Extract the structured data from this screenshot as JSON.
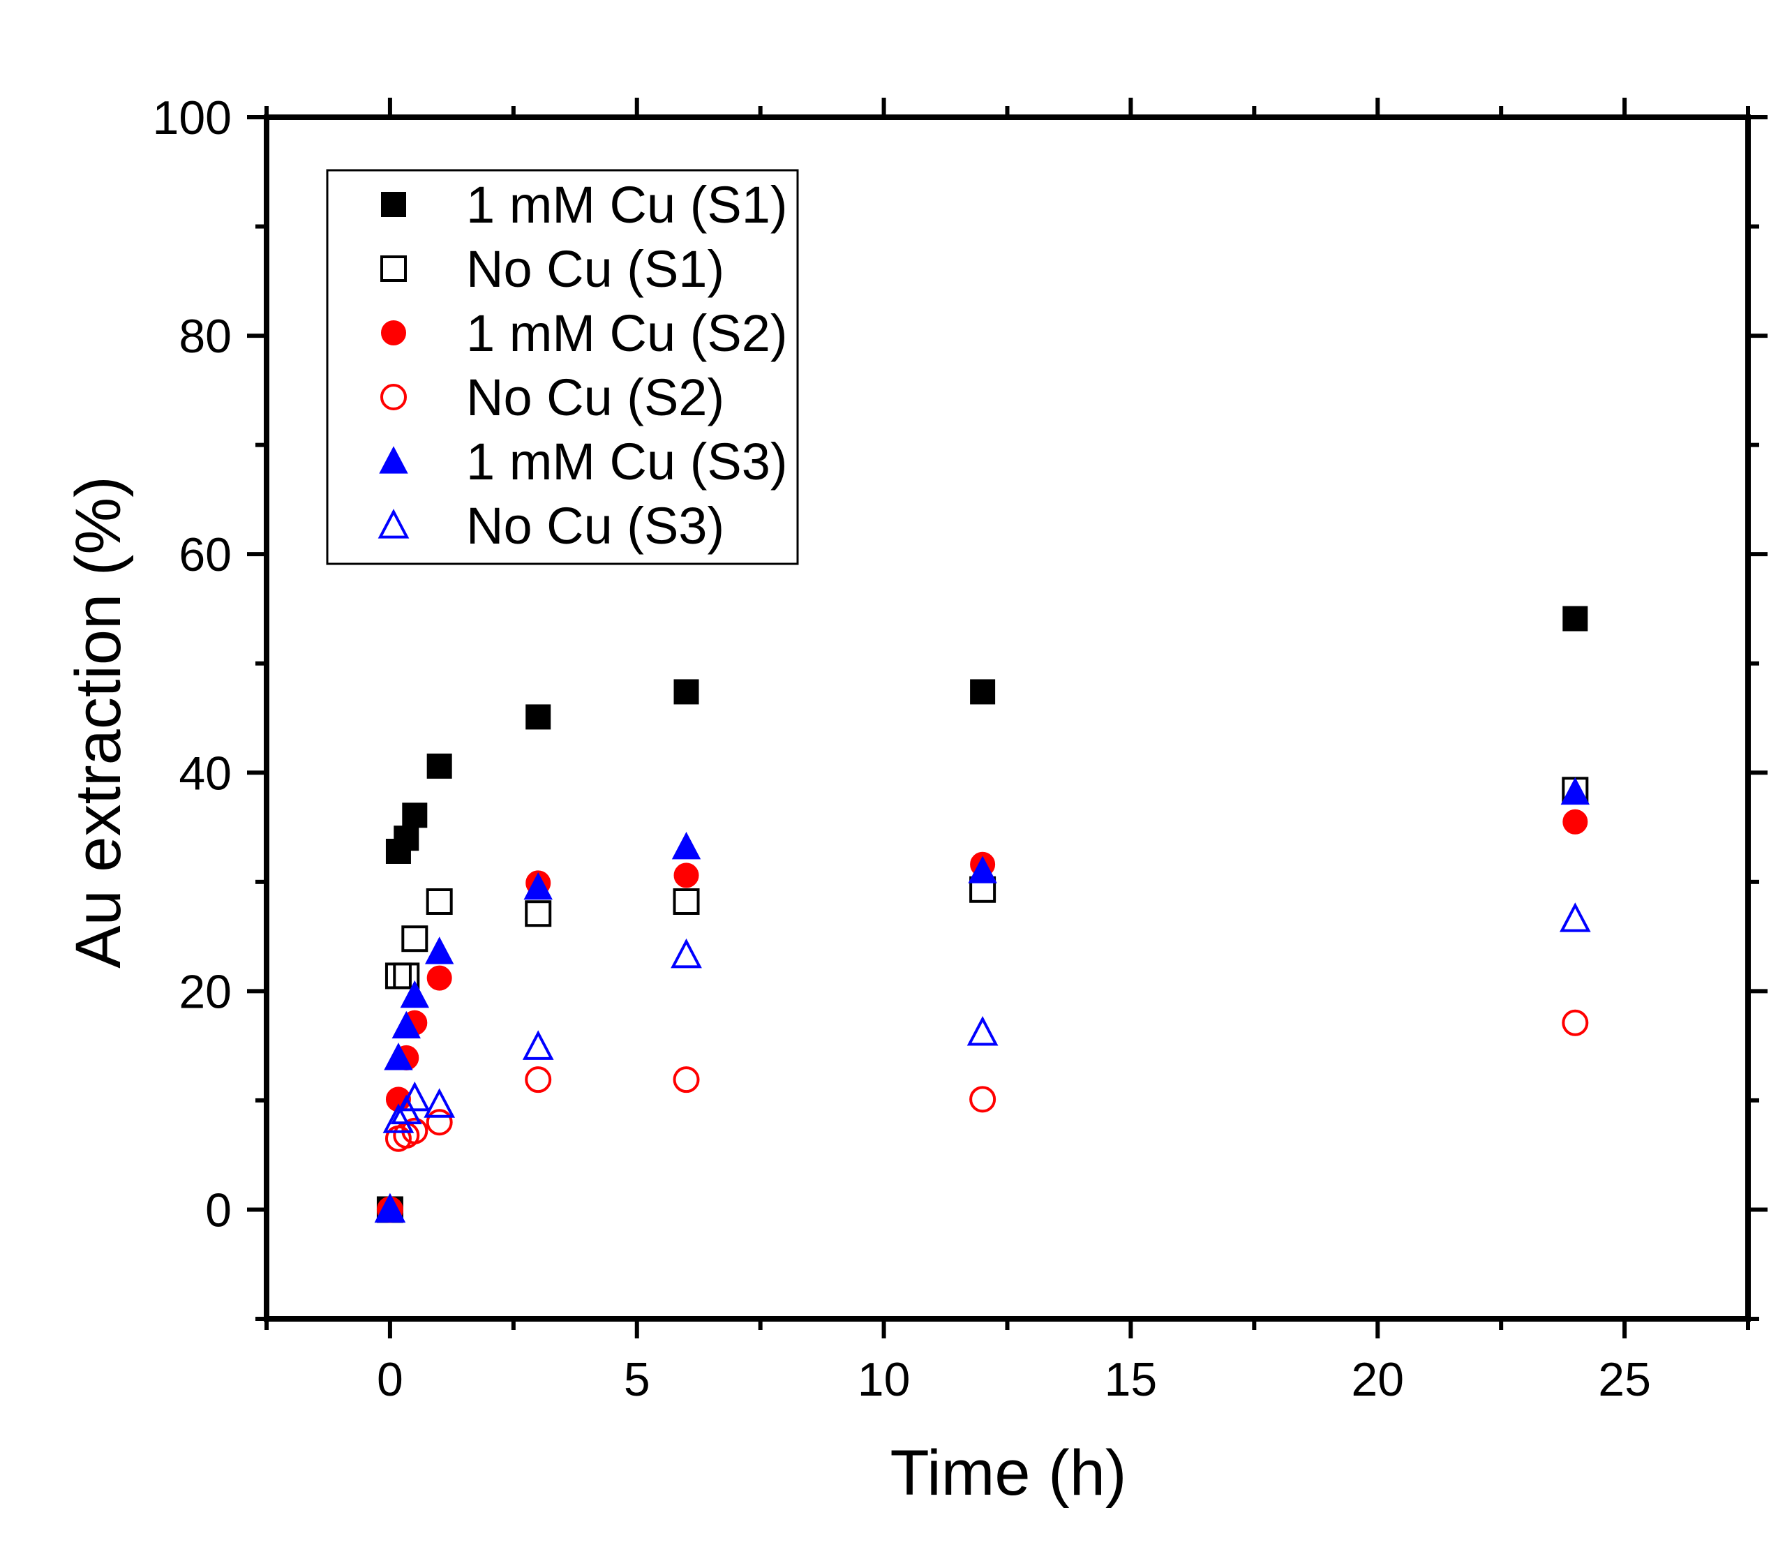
{
  "chart_data": {
    "type": "scatter",
    "title": "",
    "xlabel": "Time (h)",
    "ylabel": "Au extraction (%)",
    "xlim": [
      -2.5,
      27.5
    ],
    "ylim": [
      -10,
      100
    ],
    "xticks": [
      0,
      5,
      10,
      15,
      20,
      25
    ],
    "yticks": [
      0,
      20,
      40,
      60,
      80,
      100
    ],
    "xtick_labels": [
      "0",
      "5",
      "10",
      "15",
      "20",
      "25"
    ],
    "ytick_labels": [
      "0",
      "20",
      "40",
      "60",
      "80",
      "100"
    ],
    "legend_position": "top-left",
    "series": [
      {
        "name": "1 mM Cu (S1)",
        "marker": "square",
        "filled": true,
        "color": "#000000",
        "x": [
          0,
          0.17,
          0.33,
          0.5,
          1,
          3,
          6,
          12,
          24
        ],
        "y": [
          0,
          32.8,
          34.0,
          36.1,
          40.6,
          45.1,
          47.4,
          47.4,
          54.1
        ]
      },
      {
        "name": "No Cu (S1)",
        "marker": "square",
        "filled": false,
        "color": "#000000",
        "x": [
          0,
          0.17,
          0.33,
          0.5,
          1,
          3,
          6,
          12,
          24
        ],
        "y": [
          0,
          21.4,
          21.4,
          24.8,
          28.2,
          27.1,
          28.2,
          29.3,
          38.4
        ]
      },
      {
        "name": "1 mM Cu (S2)",
        "marker": "circle",
        "filled": true,
        "color": "#ff0000",
        "x": [
          0,
          0.17,
          0.33,
          0.5,
          1,
          3,
          6,
          12,
          24
        ],
        "y": [
          0,
          10.1,
          13.9,
          17.1,
          21.2,
          29.9,
          30.6,
          31.6,
          35.5
        ]
      },
      {
        "name": "No Cu (S2)",
        "marker": "circle",
        "filled": false,
        "color": "#ff0000",
        "x": [
          0,
          0.17,
          0.33,
          0.5,
          1,
          3,
          6,
          12,
          24
        ],
        "y": [
          0,
          6.5,
          6.8,
          7.2,
          8.0,
          11.9,
          11.9,
          10.1,
          17.1
        ]
      },
      {
        "name": "1 mM Cu (S3)",
        "marker": "triangle",
        "filled": true,
        "color": "#0000ff",
        "x": [
          0,
          0.17,
          0.33,
          0.5,
          1,
          3,
          6,
          12,
          24
        ],
        "y": [
          0,
          13.9,
          16.8,
          19.6,
          23.6,
          29.5,
          33.2,
          31.0,
          38.2
        ]
      },
      {
        "name": "No Cu (S3)",
        "marker": "triangle",
        "filled": false,
        "color": "#0000ff",
        "x": [
          0,
          0.17,
          0.33,
          0.5,
          1,
          3,
          6,
          12,
          24
        ],
        "y": [
          0,
          8.2,
          9.0,
          10.2,
          9.6,
          14.9,
          23.3,
          16.2,
          26.6
        ]
      }
    ]
  }
}
